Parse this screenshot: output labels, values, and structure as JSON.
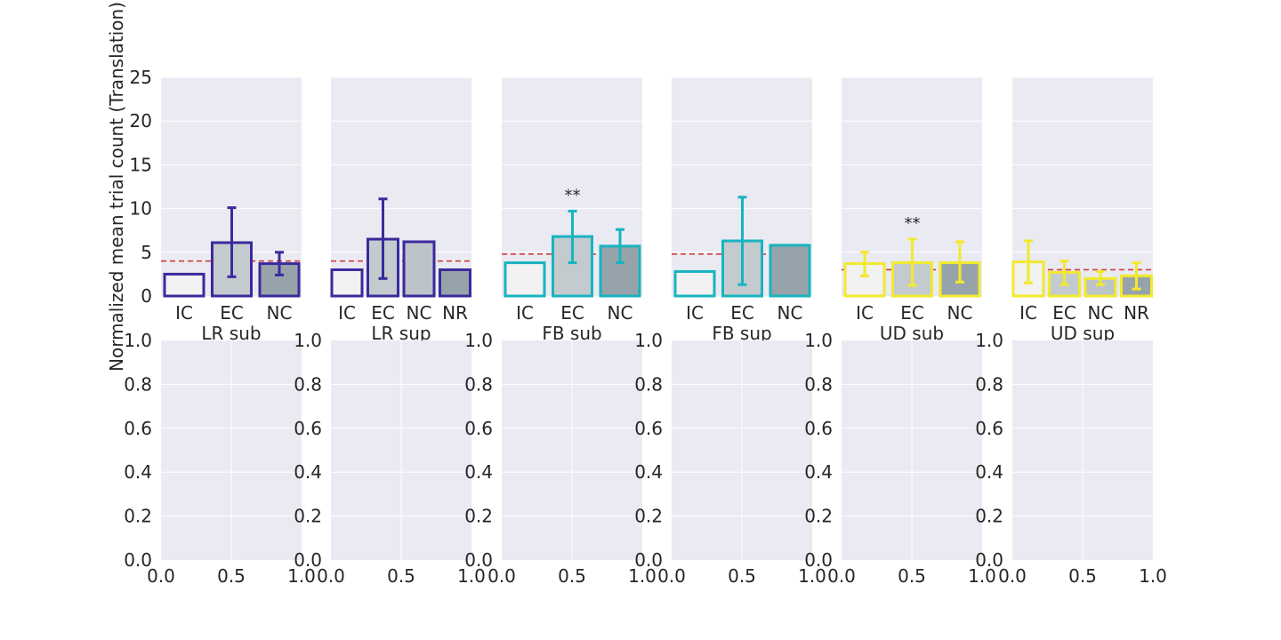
{
  "figure": {
    "ylabel": "Normalized mean trial count (Translation)"
  },
  "chart_data": [
    {
      "type": "bar",
      "row": 1,
      "xlabel": "LR sub",
      "categories": [
        "IC",
        "EC",
        "NC"
      ],
      "values": [
        2.5,
        6.1,
        3.7
      ],
      "error_low": [
        null,
        2.2,
        2.4
      ],
      "error_high": [
        null,
        10.1,
        5.0
      ],
      "reference_line": 4.0,
      "color": "#3b2a9d",
      "ylim": [
        0,
        25
      ],
      "yticks": [
        "0",
        "5",
        "10",
        "15",
        "20",
        "25"
      ],
      "annotation": ""
    },
    {
      "type": "bar",
      "row": 1,
      "xlabel": "LR sup",
      "categories": [
        "IC",
        "EC",
        "NC",
        "NR"
      ],
      "values": [
        3.0,
        6.5,
        6.2,
        3.0
      ],
      "error_low": [
        null,
        2.0,
        null,
        null
      ],
      "error_high": [
        null,
        11.1,
        null,
        null
      ],
      "reference_line": 4.0,
      "color": "#3b2a9d",
      "ylim": [
        0,
        25
      ],
      "yticks": [],
      "annotation": ""
    },
    {
      "type": "bar",
      "row": 1,
      "xlabel": "FB sub",
      "categories": [
        "IC",
        "EC",
        "NC"
      ],
      "values": [
        3.8,
        6.8,
        5.7
      ],
      "error_low": [
        null,
        3.8,
        3.8
      ],
      "error_high": [
        null,
        9.7,
        7.6
      ],
      "reference_line": 4.8,
      "color": "#17b4bf",
      "ylim": [
        0,
        25
      ],
      "yticks": [],
      "annotation": "**"
    },
    {
      "type": "bar",
      "row": 1,
      "xlabel": "FB sup",
      "categories": [
        "IC",
        "EC",
        "NC"
      ],
      "values": [
        2.8,
        6.3,
        5.8
      ],
      "error_low": [
        null,
        1.3,
        null
      ],
      "error_high": [
        null,
        11.3,
        null
      ],
      "reference_line": 4.8,
      "color": "#17b4bf",
      "ylim": [
        0,
        25
      ],
      "yticks": [],
      "annotation": ""
    },
    {
      "type": "bar",
      "row": 1,
      "xlabel": "UD sub",
      "categories": [
        "IC",
        "EC",
        "NC"
      ],
      "values": [
        3.7,
        3.8,
        3.8
      ],
      "error_low": [
        2.3,
        1.2,
        1.6
      ],
      "error_high": [
        5.0,
        6.5,
        6.2
      ],
      "reference_line": 3.0,
      "color": "#f2e92d",
      "ylim": [
        0,
        25
      ],
      "yticks": [],
      "annotation": "**"
    },
    {
      "type": "bar",
      "row": 1,
      "xlabel": "UD sup",
      "categories": [
        "IC",
        "EC",
        "NC",
        "NR"
      ],
      "values": [
        3.9,
        2.7,
        2.0,
        2.3
      ],
      "error_low": [
        1.5,
        1.3,
        1.3,
        0.8
      ],
      "error_high": [
        6.3,
        4.0,
        2.8,
        3.8
      ],
      "reference_line": 3.0,
      "color": "#f2e92d",
      "ylim": [
        0,
        25
      ],
      "yticks": [],
      "annotation": ""
    },
    {
      "type": "empty",
      "row": 2,
      "xlim": [
        0,
        1
      ],
      "ylim": [
        0,
        1
      ],
      "xticks": [
        "0.0",
        "0.5",
        "1.0"
      ],
      "yticks": [
        "0.0",
        "0.2",
        "0.4",
        "0.6",
        "0.8",
        "1.0"
      ]
    },
    {
      "type": "empty",
      "row": 2,
      "xlim": [
        0,
        1
      ],
      "ylim": [
        0,
        1
      ],
      "xticks": [
        "0.0",
        "0.5",
        "1.0"
      ],
      "yticks": [
        "0.0",
        "0.2",
        "0.4",
        "0.6",
        "0.8",
        "1.0"
      ]
    },
    {
      "type": "empty",
      "row": 2,
      "xlim": [
        0,
        1
      ],
      "ylim": [
        0,
        1
      ],
      "xticks": [
        "0.0",
        "0.5",
        "1.0"
      ],
      "yticks": [
        "0.0",
        "0.2",
        "0.4",
        "0.6",
        "0.8",
        "1.0"
      ]
    },
    {
      "type": "empty",
      "row": 2,
      "xlim": [
        0,
        1
      ],
      "ylim": [
        0,
        1
      ],
      "xticks": [
        "0.0",
        "0.5",
        "1.0"
      ],
      "yticks": [
        "0.0",
        "0.2",
        "0.4",
        "0.6",
        "0.8",
        "1.0"
      ]
    },
    {
      "type": "empty",
      "row": 2,
      "xlim": [
        0,
        1
      ],
      "ylim": [
        0,
        1
      ],
      "xticks": [
        "0.0",
        "0.5",
        "1.0"
      ],
      "yticks": [
        "0.0",
        "0.2",
        "0.4",
        "0.6",
        "0.8",
        "1.0"
      ]
    },
    {
      "type": "empty",
      "row": 2,
      "xlim": [
        0,
        1
      ],
      "ylim": [
        0,
        1
      ],
      "xticks": [
        "0.0",
        "0.5",
        "1.0"
      ],
      "yticks": [
        "0.0",
        "0.2",
        "0.4",
        "0.6",
        "0.8",
        "1.0"
      ]
    }
  ],
  "colors": {
    "panel_bg": "#eaeaf2",
    "grid": "#ffffff",
    "reference_line": "#d23c3c",
    "bar_fills": [
      "#f1f2f1",
      "#c4cbcf",
      "#bcc3c9",
      "#97a3ab"
    ]
  }
}
